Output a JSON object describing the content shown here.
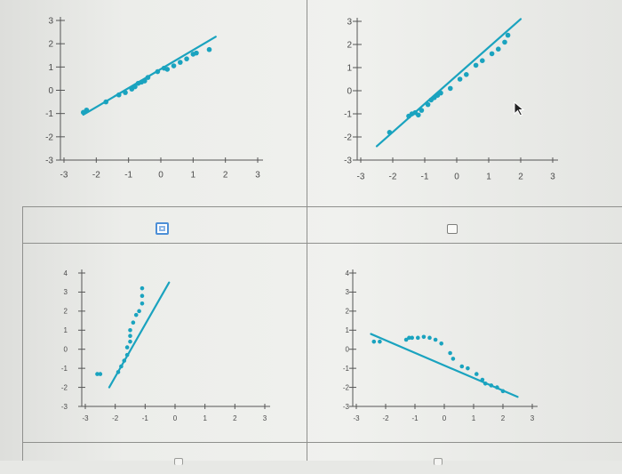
{
  "colors": {
    "series": "#1aa3bf",
    "axis": "#555555",
    "grid": "#8f908d"
  },
  "cursor_icon": "pointer-arrow-icon",
  "chart_data": [
    {
      "type": "scatter",
      "xlim": [
        -3,
        3
      ],
      "ylim": [
        -3,
        3
      ],
      "xticks": [
        "-3",
        "-2",
        "-1",
        "0",
        "1",
        "2",
        "3"
      ],
      "yticks": [
        "3",
        "2",
        "1",
        "0",
        "-1",
        "-2",
        "-3"
      ],
      "points": [
        [
          -2.4,
          -0.95
        ],
        [
          -2.3,
          -0.85
        ],
        [
          -1.7,
          -0.5
        ],
        [
          -1.3,
          -0.2
        ],
        [
          -1.1,
          -0.1
        ],
        [
          -0.9,
          0.05
        ],
        [
          -0.8,
          0.15
        ],
        [
          -0.7,
          0.3
        ],
        [
          -0.6,
          0.35
        ],
        [
          -0.5,
          0.4
        ],
        [
          -0.4,
          0.55
        ],
        [
          -0.1,
          0.8
        ],
        [
          0.1,
          0.95
        ],
        [
          0.2,
          0.9
        ],
        [
          0.4,
          1.05
        ],
        [
          0.6,
          1.2
        ],
        [
          0.8,
          1.35
        ],
        [
          1.0,
          1.55
        ],
        [
          1.1,
          1.6
        ],
        [
          1.5,
          1.75
        ]
      ],
      "line": [
        [
          -2.4,
          -1.05
        ],
        [
          1.7,
          2.3
        ]
      ]
    },
    {
      "type": "scatter",
      "xlim": [
        -3,
        3
      ],
      "ylim": [
        -3,
        3
      ],
      "xticks": [
        "-3",
        "-2",
        "-1",
        "0",
        "1",
        "2",
        "3"
      ],
      "yticks": [
        "3",
        "2",
        "1",
        "0",
        "-1",
        "-2",
        "-3"
      ],
      "points": [
        [
          -2.1,
          -1.8
        ],
        [
          -1.5,
          -1.1
        ],
        [
          -1.4,
          -1.0
        ],
        [
          -1.3,
          -0.95
        ],
        [
          -1.2,
          -1.05
        ],
        [
          -1.1,
          -0.85
        ],
        [
          -0.9,
          -0.6
        ],
        [
          -0.8,
          -0.4
        ],
        [
          -0.7,
          -0.3
        ],
        [
          -0.6,
          -0.2
        ],
        [
          -0.5,
          -0.1
        ],
        [
          -0.2,
          0.1
        ],
        [
          0.1,
          0.5
        ],
        [
          0.3,
          0.7
        ],
        [
          0.6,
          1.1
        ],
        [
          0.8,
          1.3
        ],
        [
          1.1,
          1.6
        ],
        [
          1.3,
          1.8
        ],
        [
          1.5,
          2.1
        ],
        [
          1.6,
          2.4
        ]
      ],
      "line": [
        [
          -2.5,
          -2.4
        ],
        [
          2.0,
          3.1
        ]
      ]
    },
    {
      "type": "scatter",
      "xlim": [
        -3,
        3
      ],
      "ylim": [
        -3,
        4
      ],
      "xticks": [
        "-3",
        "-2",
        "-1",
        "0",
        "1",
        "2",
        "3"
      ],
      "yticks": [
        "4",
        "3",
        "2",
        "1",
        "0",
        "-1",
        "-2",
        "-3"
      ],
      "points": [
        [
          -2.6,
          -1.3
        ],
        [
          -2.5,
          -1.3
        ],
        [
          -1.9,
          -1.2
        ],
        [
          -1.8,
          -0.9
        ],
        [
          -1.7,
          -0.6
        ],
        [
          -1.6,
          -0.3
        ],
        [
          -1.6,
          0.1
        ],
        [
          -1.5,
          0.4
        ],
        [
          -1.5,
          0.7
        ],
        [
          -1.5,
          1.0
        ],
        [
          -1.4,
          1.4
        ],
        [
          -1.3,
          1.8
        ],
        [
          -1.2,
          2.0
        ],
        [
          -1.1,
          2.4
        ],
        [
          -1.1,
          2.8
        ],
        [
          -1.1,
          3.2
        ]
      ],
      "line": [
        [
          -2.2,
          -2.0
        ],
        [
          -0.2,
          3.5
        ]
      ]
    },
    {
      "type": "scatter",
      "xlim": [
        -3,
        3
      ],
      "ylim": [
        -3,
        4
      ],
      "xticks": [
        "-3",
        "-2",
        "-1",
        "0",
        "1",
        "2",
        "3"
      ],
      "yticks": [
        "4",
        "3",
        "2",
        "1",
        "0",
        "-1",
        "-2",
        "-3"
      ],
      "points": [
        [
          -2.4,
          0.4
        ],
        [
          -2.2,
          0.4
        ],
        [
          -1.3,
          0.5
        ],
        [
          -1.2,
          0.6
        ],
        [
          -1.1,
          0.6
        ],
        [
          -0.9,
          0.6
        ],
        [
          -0.7,
          0.65
        ],
        [
          -0.5,
          0.6
        ],
        [
          -0.3,
          0.5
        ],
        [
          -0.1,
          0.3
        ],
        [
          0.2,
          -0.2
        ],
        [
          0.3,
          -0.5
        ],
        [
          0.6,
          -0.9
        ],
        [
          0.8,
          -1.0
        ],
        [
          1.1,
          -1.3
        ],
        [
          1.3,
          -1.6
        ],
        [
          1.4,
          -1.8
        ],
        [
          1.6,
          -1.9
        ],
        [
          1.8,
          -2.0
        ],
        [
          2.0,
          -2.2
        ]
      ],
      "line": [
        [
          -2.5,
          0.8
        ],
        [
          2.5,
          -2.5
        ]
      ]
    }
  ]
}
